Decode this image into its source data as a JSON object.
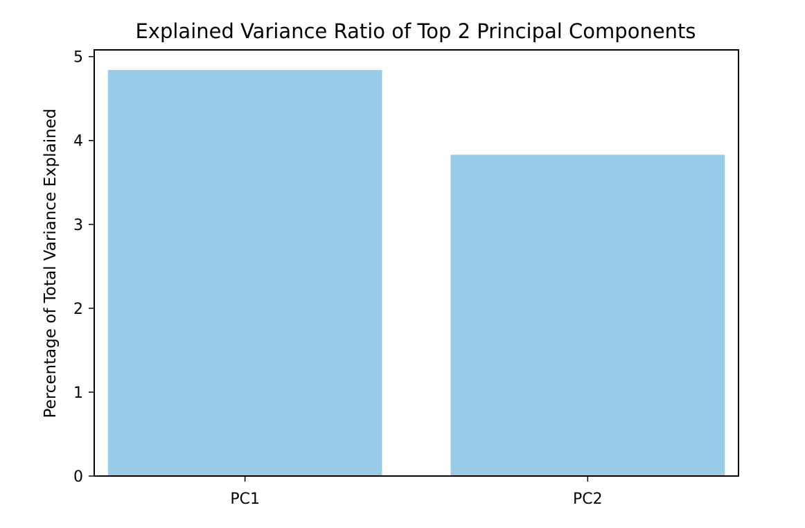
{
  "chart_data": {
    "type": "bar",
    "title": "Explained Variance Ratio of Top 2 Principal Components",
    "xlabel": "",
    "ylabel": "Percentage of Total Variance Explained",
    "categories": [
      "PC1",
      "PC2"
    ],
    "values": [
      4.84,
      3.83
    ],
    "ylim": [
      0,
      5.08
    ],
    "yticks": [
      0,
      1,
      2,
      3,
      4,
      5
    ],
    "ytick_labels": [
      "0",
      "1",
      "2",
      "3",
      "4",
      "5"
    ],
    "bar_color": "#97cbe7",
    "grid": false,
    "legend": "none"
  }
}
